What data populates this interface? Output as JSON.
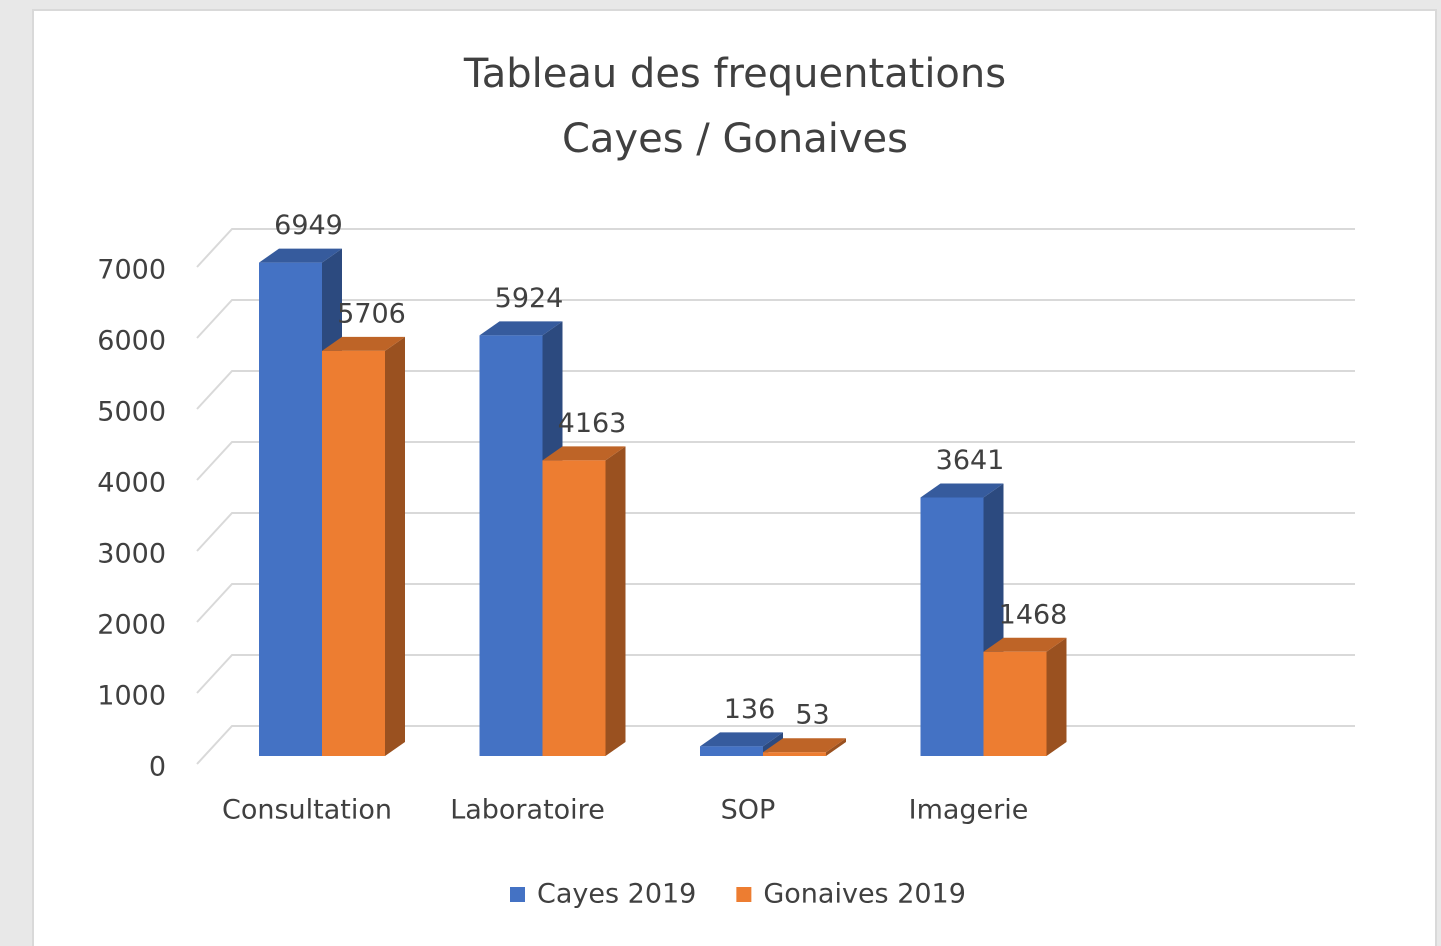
{
  "chart_data": {
    "type": "bar3d",
    "title": "Tableau des frequentations",
    "subtitle": "Cayes / Gonaives",
    "categories": [
      "Consultation",
      "Laboratoire",
      "SOP",
      "Imagerie"
    ],
    "series": [
      {
        "name": "Cayes 2019",
        "color": "#4472c4",
        "values": [
          6949,
          5924,
          136,
          3641
        ]
      },
      {
        "name": "Gonaives 2019",
        "color": "#ed7d31",
        "values": [
          5706,
          4163,
          53,
          1468
        ]
      }
    ],
    "ylim": [
      0,
      7000
    ],
    "yticks": [
      0,
      1000,
      2000,
      3000,
      4000,
      5000,
      6000,
      7000
    ],
    "grid": true,
    "legend": "bottom"
  }
}
